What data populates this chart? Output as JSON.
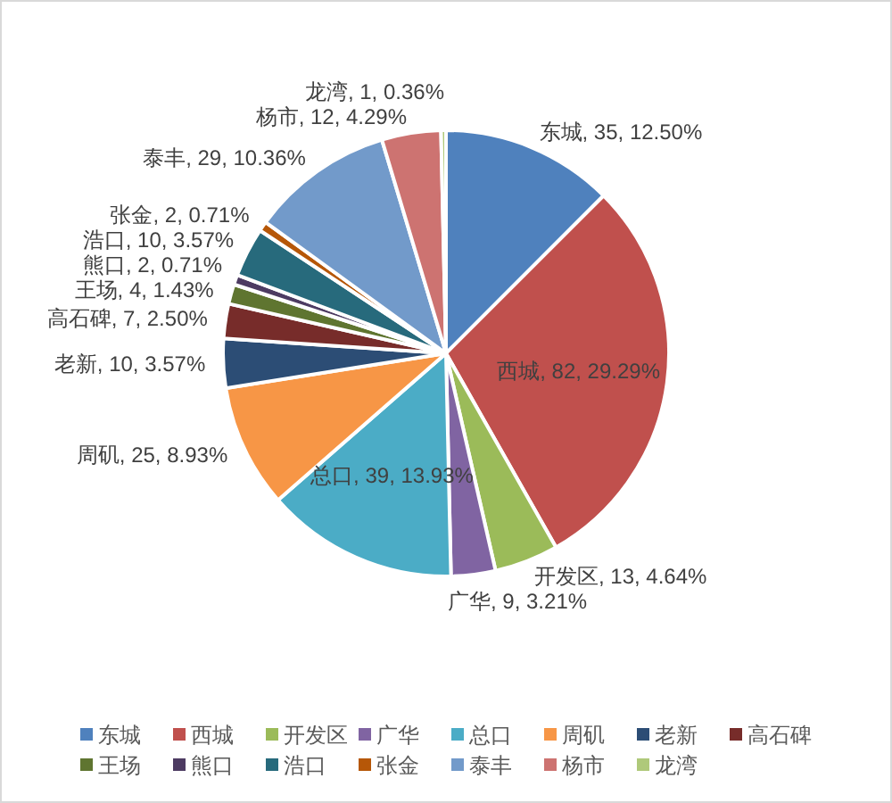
{
  "chart_data": {
    "type": "pie",
    "categories": [
      "东城",
      "西城",
      "开发区",
      "广华",
      "总口",
      "周矶",
      "老新",
      "高石碑",
      "王场",
      "熊口",
      "浩口",
      "张金",
      "泰丰",
      "杨市",
      "龙湾"
    ],
    "values": [
      35,
      82,
      13,
      9,
      39,
      25,
      10,
      7,
      4,
      2,
      10,
      2,
      29,
      12,
      1
    ],
    "value_labels": [
      "东城, 35, 12.50%",
      "西城, 82, 29.29%",
      "开发区, 13, 4.64%",
      "广华, 9, 3.21%",
      "总口, 39, 13.93%",
      "周矶, 25, 8.93%",
      "老新, 10, 3.57%",
      "高石碑, 7, 2.50%",
      "王场, 4, 1.43%",
      "熊口, 2, 0.71%",
      "浩口, 10, 3.57%",
      "张金, 2, 0.71%",
      "泰丰, 29, 10.36%",
      "杨市, 12, 4.29%",
      "龙湾, 1, 0.36%"
    ],
    "colors": [
      "#4f81bd",
      "#c0504d",
      "#9bbb59",
      "#8064a2",
      "#4bacc6",
      "#f79646",
      "#2c4d75",
      "#772c2a",
      "#5f7530",
      "#4d3b62",
      "#276a7c",
      "#b65708",
      "#729aca",
      "#cd7371",
      "#afc97a"
    ],
    "legend": "bottom"
  }
}
